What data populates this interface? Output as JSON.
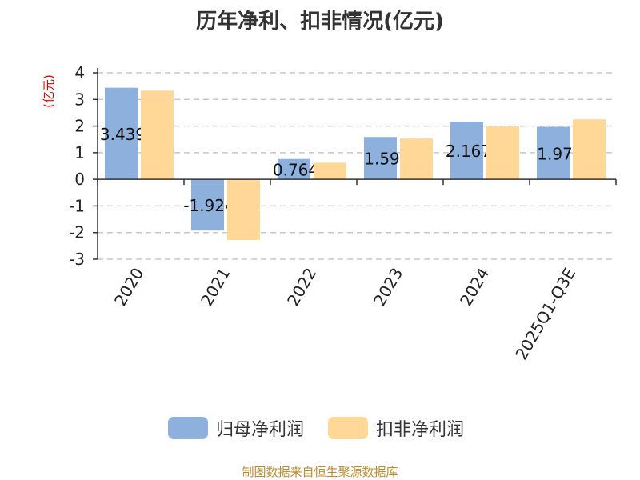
{
  "chart_data": {
    "type": "bar",
    "title": "历年净利、扣非情况(亿元)",
    "ylabel": "(亿元)",
    "categories": [
      "2020",
      "2021",
      "2022",
      "2023",
      "2024",
      "2025Q1-Q3E"
    ],
    "series": [
      {
        "name": "归母净利润",
        "color": "#8eb0dc",
        "values": [
          3.439,
          -1.924,
          0.764,
          1.59,
          2.167,
          1.97
        ],
        "labels": [
          "3.439",
          "-1.924",
          "0.764",
          "1.59",
          "2.167",
          "1.97"
        ]
      },
      {
        "name": "扣非净利润",
        "color": "#ffd797",
        "values": [
          3.33,
          -2.28,
          0.62,
          1.53,
          1.98,
          2.25
        ]
      }
    ],
    "ylim": [
      -3,
      4
    ],
    "yticks": [
      4,
      3,
      2,
      1,
      0,
      -1,
      -2,
      -3
    ],
    "grid": true,
    "legend": "bottom"
  },
  "source": "制图数据来自恒生聚源数据库"
}
